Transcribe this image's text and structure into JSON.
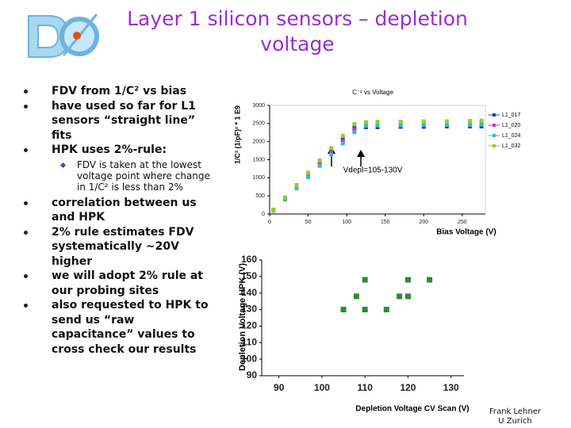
{
  "slide": {
    "title": "Layer 1 silicon sensors – depletion voltage",
    "bullets": [
      "FDV from 1/C² vs bias",
      "have used so far for L1 sensors “straight line” fits",
      "HPK uses 2%-rule:"
    ],
    "sub_bullet": "FDV is taken at the lowest voltage point where change in 1/C² is less than 2%",
    "bullets_after": [
      "correlation between us and HPK",
      "2% rule estimates FDV systematically ~20V higher",
      "we will adopt 2% rule at our probing sites",
      "also requested to HPK to send us “raw capacitance” values to cross check our results"
    ],
    "footer": [
      "Frank Lehner",
      "U Zurich"
    ]
  },
  "chart_data": [
    {
      "type": "scatter",
      "title": "C⁻² vs Voltage",
      "x_label": "Bias Voltage (V)",
      "y_label": "1/C² (1/pF)² * 1 E9",
      "annotation": "Vdepl=105-130V",
      "xlim": [
        0,
        280
      ],
      "xticks": [
        0,
        50,
        100,
        150,
        200,
        250
      ],
      "ylim": [
        0,
        3000
      ],
      "yticks": [
        0,
        500,
        1000,
        1500,
        2000,
        2500,
        3000
      ],
      "x": [
        5,
        20,
        35,
        50,
        65,
        80,
        95,
        110,
        125,
        140,
        170,
        200,
        230,
        260,
        275
      ],
      "series": [
        {
          "name": "L1_017",
          "color": "#1f3fa0",
          "values": [
            110,
            440,
            770,
            1100,
            1430,
            1760,
            2090,
            2380,
            2400,
            2400,
            2410,
            2410,
            2420,
            2420,
            2420
          ]
        },
        {
          "name": "L1_020",
          "color": "#cc33cc",
          "values": [
            100,
            420,
            740,
            1060,
            1380,
            1700,
            2020,
            2340,
            2490,
            2500,
            2500,
            2510,
            2510,
            2520,
            2520
          ]
        },
        {
          "name": "L1_024",
          "color": "#33bbcc",
          "values": [
            90,
            400,
            710,
            1020,
            1330,
            1640,
            1950,
            2260,
            2440,
            2450,
            2450,
            2460,
            2460,
            2460,
            2470
          ]
        },
        {
          "name": "L1_032",
          "color": "#99cc33",
          "values": [
            120,
            460,
            800,
            1140,
            1480,
            1820,
            2160,
            2480,
            2540,
            2550,
            2550,
            2560,
            2560,
            2570,
            2580
          ]
        }
      ]
    },
    {
      "type": "scatter",
      "x_label": "Depletion Voltage CV Scan (V)",
      "y_label": "Depletion Voltage HPK (V)",
      "xlim": [
        86,
        133
      ],
      "xticks": [
        90,
        100,
        110,
        120,
        130
      ],
      "ylim": [
        90,
        160
      ],
      "yticks": [
        90,
        100,
        110,
        120,
        130,
        140,
        150,
        160
      ],
      "color": "#2e8b2e",
      "x": [
        110,
        120,
        125,
        108,
        118,
        120,
        105,
        110,
        115
      ],
      "values": [
        148,
        148,
        148,
        138,
        138,
        138,
        130,
        130,
        130
      ]
    }
  ]
}
